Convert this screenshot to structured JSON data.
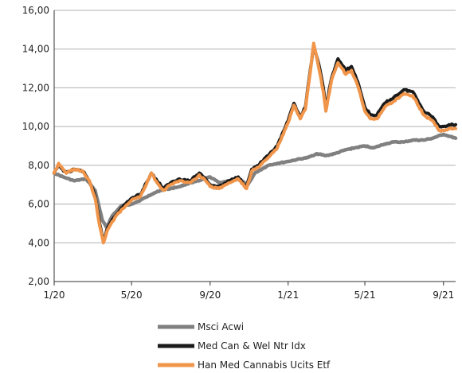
{
  "chart_data": {
    "type": "line",
    "ylim": [
      2,
      16
    ],
    "y_ticks": [
      2,
      4,
      6,
      8,
      10,
      12,
      14,
      16
    ],
    "y_tick_labels": [
      "2,00",
      "4,00",
      "6,00",
      "8,00",
      "10,00",
      "12,00",
      "14,00",
      "16,00"
    ],
    "x_range": [
      "2020-01-01",
      "2021-09-20"
    ],
    "x_ticks": [
      "2020-01-01",
      "2020-05-01",
      "2020-09-01",
      "2021-01-01",
      "2021-05-01",
      "2021-09-01"
    ],
    "x_tick_labels": [
      "1/20",
      "5/20",
      "9/20",
      "1/21",
      "5/21",
      "9/21"
    ],
    "grid": "horizontal",
    "legend_position": "bottom",
    "series": [
      {
        "name": "Msci Acwi",
        "color": "#808080",
        "points": [
          [
            "2020-01-01",
            7.6
          ],
          [
            "2020-01-15",
            7.4
          ],
          [
            "2020-02-01",
            7.2
          ],
          [
            "2020-02-20",
            7.3
          ],
          [
            "2020-03-05",
            6.7
          ],
          [
            "2020-03-16",
            5.2
          ],
          [
            "2020-03-23",
            4.8
          ],
          [
            "2020-04-01",
            5.4
          ],
          [
            "2020-04-15",
            5.9
          ],
          [
            "2020-05-01",
            6.0
          ],
          [
            "2020-05-15",
            6.2
          ],
          [
            "2020-06-01",
            6.5
          ],
          [
            "2020-06-15",
            6.7
          ],
          [
            "2020-07-01",
            6.8
          ],
          [
            "2020-07-15",
            6.9
          ],
          [
            "2020-08-01",
            7.1
          ],
          [
            "2020-08-15",
            7.2
          ],
          [
            "2020-09-01",
            7.4
          ],
          [
            "2020-09-15",
            7.1
          ],
          [
            "2020-10-01",
            7.2
          ],
          [
            "2020-10-15",
            7.3
          ],
          [
            "2020-10-30",
            7.0
          ],
          [
            "2020-11-10",
            7.6
          ],
          [
            "2020-12-01",
            8.0
          ],
          [
            "2020-12-15",
            8.1
          ],
          [
            "2021-01-01",
            8.2
          ],
          [
            "2021-01-15",
            8.3
          ],
          [
            "2021-02-01",
            8.4
          ],
          [
            "2021-02-15",
            8.6
          ],
          [
            "2021-03-01",
            8.5
          ],
          [
            "2021-03-15",
            8.6
          ],
          [
            "2021-04-01",
            8.8
          ],
          [
            "2021-04-15",
            8.9
          ],
          [
            "2021-05-01",
            9.0
          ],
          [
            "2021-05-15",
            8.9
          ],
          [
            "2021-06-01",
            9.1
          ],
          [
            "2021-06-15",
            9.2
          ],
          [
            "2021-07-01",
            9.2
          ],
          [
            "2021-07-15",
            9.3
          ],
          [
            "2021-08-01",
            9.3
          ],
          [
            "2021-08-15",
            9.4
          ],
          [
            "2021-09-01",
            9.6
          ],
          [
            "2021-09-10",
            9.5
          ],
          [
            "2021-09-20",
            9.4
          ]
        ]
      },
      {
        "name": "Med Can & Wel Ntr Idx",
        "color": "#1a1a1a",
        "points": [
          [
            "2020-01-01",
            7.6
          ],
          [
            "2020-01-08",
            8.0
          ],
          [
            "2020-01-20",
            7.6
          ],
          [
            "2020-02-01",
            7.8
          ],
          [
            "2020-02-15",
            7.7
          ],
          [
            "2020-02-25",
            7.2
          ],
          [
            "2020-03-05",
            6.4
          ],
          [
            "2020-03-12",
            5.0
          ],
          [
            "2020-03-18",
            4.1
          ],
          [
            "2020-03-25",
            4.8
          ],
          [
            "2020-04-01",
            5.2
          ],
          [
            "2020-04-15",
            5.8
          ],
          [
            "2020-05-01",
            6.3
          ],
          [
            "2020-05-15",
            6.5
          ],
          [
            "2020-06-01",
            7.6
          ],
          [
            "2020-06-10",
            7.2
          ],
          [
            "2020-06-20",
            6.8
          ],
          [
            "2020-07-01",
            7.1
          ],
          [
            "2020-07-15",
            7.3
          ],
          [
            "2020-08-01",
            7.2
          ],
          [
            "2020-08-15",
            7.6
          ],
          [
            "2020-08-25",
            7.3
          ],
          [
            "2020-09-01",
            7.0
          ],
          [
            "2020-09-15",
            6.9
          ],
          [
            "2020-10-01",
            7.2
          ],
          [
            "2020-10-15",
            7.4
          ],
          [
            "2020-10-28",
            6.9
          ],
          [
            "2020-11-05",
            7.8
          ],
          [
            "2020-11-15",
            8.0
          ],
          [
            "2020-12-01",
            8.5
          ],
          [
            "2020-12-15",
            9.0
          ],
          [
            "2021-01-01",
            10.3
          ],
          [
            "2021-01-10",
            11.2
          ],
          [
            "2021-01-20",
            10.5
          ],
          [
            "2021-01-28",
            11.0
          ],
          [
            "2021-02-05",
            13.0
          ],
          [
            "2021-02-10",
            14.2
          ],
          [
            "2021-02-18",
            13.2
          ],
          [
            "2021-02-25",
            12.0
          ],
          [
            "2021-03-01",
            11.0
          ],
          [
            "2021-03-10",
            12.5
          ],
          [
            "2021-03-20",
            13.5
          ],
          [
            "2021-04-01",
            12.9
          ],
          [
            "2021-04-10",
            13.1
          ],
          [
            "2021-04-20",
            12.3
          ],
          [
            "2021-05-01",
            11.0
          ],
          [
            "2021-05-10",
            10.6
          ],
          [
            "2021-05-20",
            10.6
          ],
          [
            "2021-06-01",
            11.2
          ],
          [
            "2021-06-15",
            11.5
          ],
          [
            "2021-07-01",
            11.9
          ],
          [
            "2021-07-15",
            11.8
          ],
          [
            "2021-08-01",
            10.8
          ],
          [
            "2021-08-15",
            10.5
          ],
          [
            "2021-08-25",
            10.0
          ],
          [
            "2021-09-01",
            10.0
          ],
          [
            "2021-09-10",
            10.1
          ],
          [
            "2021-09-20",
            10.1
          ]
        ]
      },
      {
        "name": "Han Med Cannabis Ucits Etf",
        "color": "#f0954a",
        "points": [
          [
            "2020-01-01",
            7.6
          ],
          [
            "2020-01-08",
            8.1
          ],
          [
            "2020-01-20",
            7.6
          ],
          [
            "2020-02-01",
            7.8
          ],
          [
            "2020-02-15",
            7.7
          ],
          [
            "2020-02-25",
            7.2
          ],
          [
            "2020-03-05",
            6.3
          ],
          [
            "2020-03-12",
            4.9
          ],
          [
            "2020-03-18",
            4.0
          ],
          [
            "2020-03-25",
            4.7
          ],
          [
            "2020-04-01",
            5.1
          ],
          [
            "2020-04-15",
            5.7
          ],
          [
            "2020-05-01",
            6.2
          ],
          [
            "2020-05-15",
            6.4
          ],
          [
            "2020-06-01",
            7.6
          ],
          [
            "2020-06-10",
            7.1
          ],
          [
            "2020-06-20",
            6.7
          ],
          [
            "2020-07-01",
            7.0
          ],
          [
            "2020-07-15",
            7.2
          ],
          [
            "2020-08-01",
            7.1
          ],
          [
            "2020-08-15",
            7.5
          ],
          [
            "2020-08-25",
            7.2
          ],
          [
            "2020-09-01",
            6.9
          ],
          [
            "2020-09-15",
            6.8
          ],
          [
            "2020-10-01",
            7.1
          ],
          [
            "2020-10-15",
            7.3
          ],
          [
            "2020-10-28",
            6.8
          ],
          [
            "2020-11-05",
            7.7
          ],
          [
            "2020-11-15",
            7.9
          ],
          [
            "2020-12-01",
            8.4
          ],
          [
            "2020-12-15",
            8.9
          ],
          [
            "2021-01-01",
            10.2
          ],
          [
            "2021-01-10",
            11.1
          ],
          [
            "2021-01-20",
            10.4
          ],
          [
            "2021-01-28",
            10.9
          ],
          [
            "2021-02-05",
            12.9
          ],
          [
            "2021-02-10",
            14.3
          ],
          [
            "2021-02-18",
            13.0
          ],
          [
            "2021-02-25",
            11.8
          ],
          [
            "2021-03-01",
            10.8
          ],
          [
            "2021-03-10",
            12.4
          ],
          [
            "2021-03-20",
            13.3
          ],
          [
            "2021-04-01",
            12.7
          ],
          [
            "2021-04-10",
            12.9
          ],
          [
            "2021-04-20",
            12.1
          ],
          [
            "2021-05-01",
            10.8
          ],
          [
            "2021-05-10",
            10.4
          ],
          [
            "2021-05-20",
            10.4
          ],
          [
            "2021-06-01",
            11.0
          ],
          [
            "2021-06-15",
            11.3
          ],
          [
            "2021-07-01",
            11.7
          ],
          [
            "2021-07-15",
            11.6
          ],
          [
            "2021-08-01",
            10.6
          ],
          [
            "2021-08-15",
            10.3
          ],
          [
            "2021-08-25",
            9.8
          ],
          [
            "2021-09-01",
            9.8
          ],
          [
            "2021-09-10",
            9.9
          ],
          [
            "2021-09-20",
            9.9
          ]
        ]
      }
    ]
  }
}
